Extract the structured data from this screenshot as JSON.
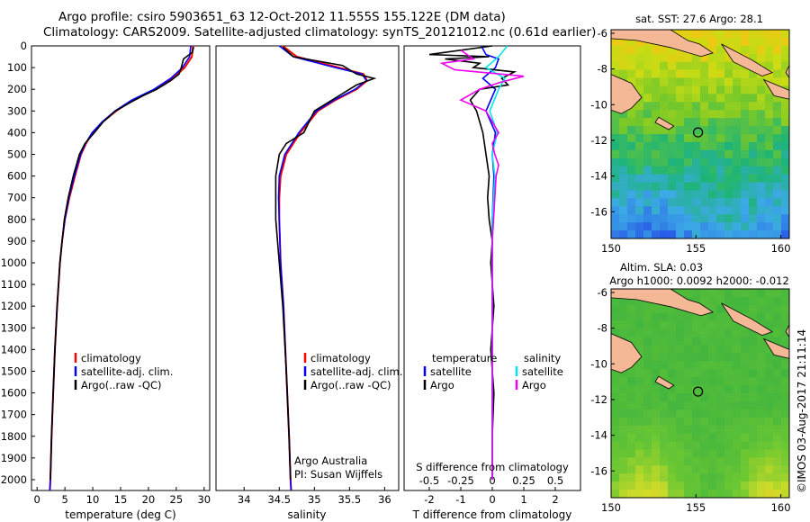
{
  "header": {
    "title_line1": "Argo profile: csiro 5903651_63 12-Oct-2012 11.555S 155.122E (DM data)",
    "title_line2": "Climatology: CARS2009. Satellite-adjusted climatology: synTS_20121012.nc (0.61d earlier)"
  },
  "watermark": "©IMOS 03-Aug-2017 21:11:14",
  "colors": {
    "climatology": "#ff0000",
    "satellite": "#0000ff",
    "argo": "#000000",
    "sal_satellite": "#00e5ee",
    "sal_argo": "#ee00ee",
    "land": "#f4b896"
  },
  "chart_data": [
    {
      "type": "line",
      "id": "temperature",
      "xlabel": "temperature (deg C)",
      "ylabel": "",
      "xlim": [
        -1,
        31
      ],
      "ylim": [
        0,
        2050
      ],
      "xticks": [
        0,
        5,
        10,
        15,
        20,
        25,
        30
      ],
      "yticks": [
        0,
        100,
        200,
        300,
        400,
        500,
        600,
        700,
        800,
        900,
        1000,
        1100,
        1200,
        1300,
        1400,
        1500,
        1600,
        1700,
        1800,
        1900,
        2000
      ],
      "legend": [
        "climatology",
        "satellite-adj. clim.",
        "Argo(..raw -QC)"
      ],
      "series": [
        {
          "name": "climatology",
          "depth": [
            0,
            50,
            100,
            150,
            200,
            250,
            300,
            350,
            400,
            450,
            500,
            600,
            700,
            800,
            900,
            1000,
            1200,
            1400,
            1600,
            1800,
            2000,
            2050
          ],
          "values": [
            28,
            27.8,
            26.5,
            24.4,
            21.3,
            17.2,
            14.2,
            11.8,
            10.0,
            8.8,
            7.9,
            6.8,
            5.8,
            5.0,
            4.5,
            4.1,
            3.6,
            3.2,
            2.9,
            2.6,
            2.4,
            2.3
          ]
        },
        {
          "name": "satellite",
          "depth": [
            0,
            50,
            100,
            150,
            200,
            250,
            300,
            350,
            400,
            450,
            500,
            600,
            700,
            800,
            900,
            1000,
            1200,
            1400,
            1600,
            1800,
            2000,
            2050
          ],
          "values": [
            27.6,
            27.4,
            26.1,
            24.0,
            21.0,
            17.0,
            14.0,
            11.7,
            9.9,
            8.7,
            7.8,
            6.7,
            5.7,
            5.0,
            4.5,
            4.1,
            3.6,
            3.2,
            2.9,
            2.6,
            2.4,
            2.3
          ]
        },
        {
          "name": "argo",
          "depth": [
            5,
            30,
            60,
            100,
            130,
            160,
            200,
            230,
            260,
            300,
            350,
            400,
            450,
            500,
            600,
            700,
            800,
            900,
            1000,
            1200,
            1400,
            1600,
            1800,
            2000
          ],
          "values": [
            28.1,
            27.9,
            26.3,
            25.9,
            25.5,
            24.0,
            21.5,
            19.0,
            16.8,
            14.1,
            11.9,
            10.3,
            8.6,
            7.6,
            6.5,
            5.6,
            4.9,
            4.5,
            4.1,
            3.6,
            3.2,
            2.9,
            2.6,
            2.4
          ]
        }
      ]
    },
    {
      "type": "line",
      "id": "salinity",
      "xlabel": "salinity",
      "xlim": [
        33.6,
        36.2
      ],
      "ylim": [
        0,
        2050
      ],
      "xticks": [
        34,
        34.5,
        35,
        35.5,
        36
      ],
      "legend": [
        "climatology",
        "satellite-adj. clim.",
        "Argo(..raw -QC)"
      ],
      "annotation": [
        "Argo Australia",
        "PI: Susan Wijffels"
      ],
      "series": [
        {
          "name": "climatology",
          "depth": [
            0,
            50,
            100,
            130,
            160,
            200,
            250,
            300,
            400,
            500,
            600,
            700,
            800,
            1000,
            1200,
            1500,
            1800,
            2000,
            2050
          ],
          "values": [
            34.55,
            34.75,
            35.35,
            35.7,
            35.75,
            35.6,
            35.3,
            35.05,
            34.8,
            34.6,
            34.52,
            34.5,
            34.5,
            34.52,
            34.56,
            34.6,
            34.64,
            34.66,
            34.67
          ]
        },
        {
          "name": "satellite",
          "depth": [
            0,
            50,
            100,
            130,
            160,
            200,
            250,
            300,
            400,
            500,
            600,
            700,
            800,
            1000,
            1200,
            1500,
            1800,
            2000,
            2050
          ],
          "values": [
            34.5,
            34.7,
            35.3,
            35.68,
            35.74,
            35.58,
            35.28,
            35.03,
            34.78,
            34.58,
            34.5,
            34.49,
            34.5,
            34.52,
            34.56,
            34.6,
            34.64,
            34.66,
            34.67
          ]
        },
        {
          "name": "argo",
          "depth": [
            5,
            50,
            90,
            130,
            150,
            180,
            220,
            260,
            300,
            400,
            450,
            500,
            600,
            700,
            800,
            1000,
            1200,
            1500,
            1800,
            2000
          ],
          "values": [
            34.55,
            34.7,
            35.4,
            35.6,
            35.85,
            35.6,
            35.4,
            35.2,
            35.0,
            34.85,
            34.6,
            34.5,
            34.45,
            34.45,
            34.45,
            34.5,
            34.55,
            34.6,
            34.64,
            34.66
          ]
        }
      ]
    },
    {
      "type": "line",
      "id": "difference",
      "xlabel": "T difference from climatology",
      "xlabel_top": "S difference from climatology",
      "xlim": [
        -2.8,
        2.8
      ],
      "ylim": [
        0,
        2050
      ],
      "xticks_bottom": [
        -2,
        -1,
        0,
        1,
        2
      ],
      "xticks_top": [
        -0.5,
        -0.25,
        0,
        0.25,
        0.5
      ],
      "legend_temperature": [
        "temperature",
        "satellite",
        "Argo"
      ],
      "legend_salinity": [
        "salinity",
        "satellite",
        "Argo"
      ],
      "series": [
        {
          "name": "temperature satellite",
          "depth": [
            0,
            40,
            60,
            100,
            150,
            200,
            300,
            400,
            500,
            600,
            800,
            1000,
            1500,
            2000
          ],
          "values": [
            -0.35,
            -0.2,
            0.2,
            0.1,
            -0.3,
            0.1,
            -0.2,
            0.1,
            0.0,
            0.05,
            0.0,
            0.0,
            0.0,
            0.0
          ]
        },
        {
          "name": "temperature Argo",
          "depth": [
            0,
            40,
            50,
            60,
            80,
            100,
            120,
            150,
            180,
            200,
            250,
            300,
            400,
            500,
            600,
            700,
            800,
            900,
            1000,
            1200,
            1400,
            1600,
            1800,
            2000
          ],
          "values": [
            0.0,
            -2.0,
            -0.1,
            -1.5,
            -0.4,
            -0.6,
            0.7,
            0.3,
            0.5,
            -0.4,
            -0.7,
            -0.5,
            -0.3,
            -0.2,
            -0.1,
            -0.15,
            -0.1,
            0.0,
            -0.05,
            0.05,
            -0.05,
            0.05,
            0.0,
            0.0
          ]
        },
        {
          "name": "salinity satellite",
          "depth": [
            0,
            50,
            100,
            150,
            200,
            300,
            400,
            500,
            600,
            800,
            1000,
            1500,
            2000
          ],
          "values": [
            0.12,
            0.05,
            -0.05,
            0.1,
            0.05,
            -0.02,
            0.04,
            0.0,
            0.02,
            0.0,
            0.0,
            0.0,
            0.0
          ]
        },
        {
          "name": "salinity Argo",
          "depth": [
            20,
            60,
            80,
            110,
            140,
            170,
            200,
            250,
            300,
            400,
            450,
            500,
            550,
            600,
            700,
            800,
            900,
            1000,
            1500,
            2000
          ],
          "values": [
            -0.25,
            -0.15,
            -0.4,
            -0.3,
            0.25,
            0.05,
            -0.1,
            -0.25,
            -0.05,
            0.05,
            0.0,
            0.02,
            0.05,
            0.03,
            0.02,
            0.01,
            0.0,
            0.0,
            0.0,
            0.0
          ]
        }
      ]
    },
    {
      "type": "heatmap",
      "id": "sst_map",
      "title": "sat. SST: 27.6  Argo: 28.1",
      "xlim": [
        150,
        160.5
      ],
      "ylim": [
        -17.5,
        -5.8
      ],
      "xticks": [
        150,
        155,
        160
      ],
      "yticks": [
        -6,
        -8,
        -10,
        -12,
        -14,
        -16
      ],
      "marker": {
        "lon": 155.122,
        "lat": -11.555
      }
    },
    {
      "type": "heatmap",
      "id": "sla_map",
      "title_line1": "Altim. SLA: 0.03",
      "title_line2": "Argo h1000: 0.0092 h2000: -0.012",
      "xlim": [
        150,
        160.5
      ],
      "ylim": [
        -17.5,
        -5.8
      ],
      "xticks": [
        150,
        155,
        160
      ],
      "yticks": [
        -6,
        -8,
        -10,
        -12,
        -14,
        -16
      ],
      "marker": {
        "lon": 155.122,
        "lat": -11.555
      }
    }
  ]
}
